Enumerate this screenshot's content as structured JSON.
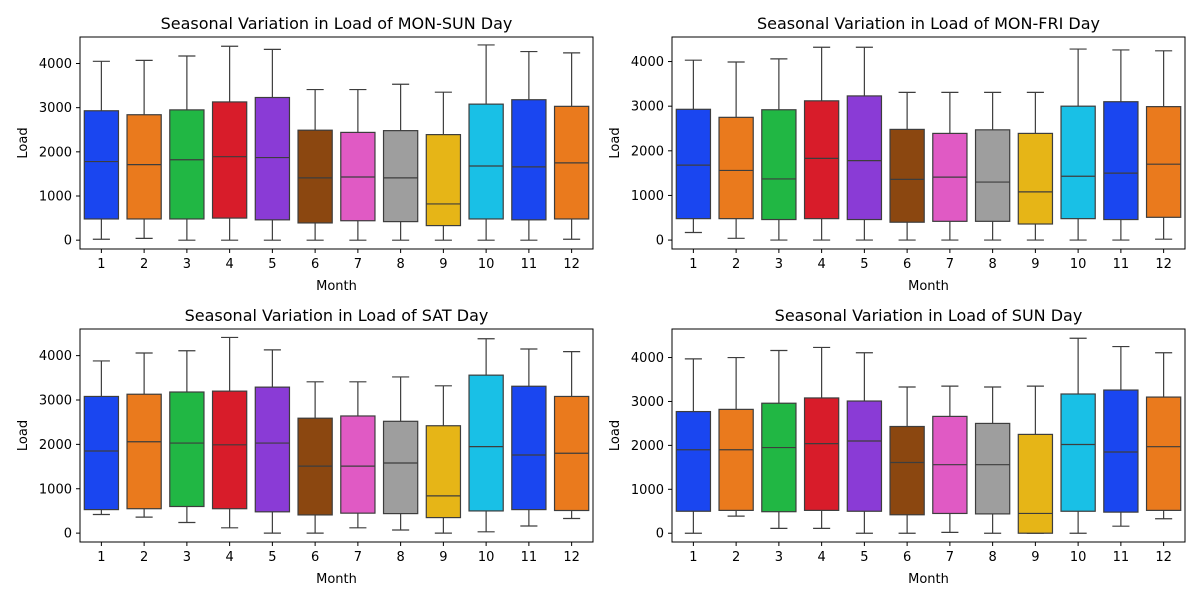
{
  "chart_data": [
    {
      "type": "box",
      "title": "Seasonal Variation in Load of MON-SUN Day",
      "xlabel": "Month",
      "ylabel": "Load",
      "categories": [
        "1",
        "2",
        "3",
        "4",
        "5",
        "6",
        "7",
        "8",
        "9",
        "10",
        "11",
        "12"
      ],
      "ylim": [
        -200,
        4600
      ],
      "yticks": [
        0,
        1000,
        2000,
        3000,
        4000
      ],
      "boxes": [
        {
          "min": 20,
          "q1": 480,
          "median": 1780,
          "q3": 2930,
          "max": 4050
        },
        {
          "min": 40,
          "q1": 480,
          "median": 1710,
          "q3": 2840,
          "max": 4070
        },
        {
          "min": 0,
          "q1": 480,
          "median": 1820,
          "q3": 2950,
          "max": 4170
        },
        {
          "min": 0,
          "q1": 500,
          "median": 1890,
          "q3": 3130,
          "max": 4390
        },
        {
          "min": 0,
          "q1": 460,
          "median": 1870,
          "q3": 3230,
          "max": 4320
        },
        {
          "min": 0,
          "q1": 390,
          "median": 1410,
          "q3": 2490,
          "max": 3410
        },
        {
          "min": 0,
          "q1": 440,
          "median": 1430,
          "q3": 2440,
          "max": 3410
        },
        {
          "min": 0,
          "q1": 420,
          "median": 1410,
          "q3": 2480,
          "max": 3530
        },
        {
          "min": 0,
          "q1": 330,
          "median": 820,
          "q3": 2390,
          "max": 3350
        },
        {
          "min": 0,
          "q1": 480,
          "median": 1680,
          "q3": 3080,
          "max": 4420
        },
        {
          "min": 0,
          "q1": 460,
          "median": 1660,
          "q3": 3180,
          "max": 4270
        },
        {
          "min": 20,
          "q1": 480,
          "median": 1750,
          "q3": 3030,
          "max": 4240
        }
      ]
    },
    {
      "type": "box",
      "title": "Seasonal Variation in Load of MON-FRI Day",
      "xlabel": "Month",
      "ylabel": "Load",
      "categories": [
        "1",
        "2",
        "3",
        "4",
        "5",
        "6",
        "7",
        "8",
        "9",
        "10",
        "11",
        "12"
      ],
      "ylim": [
        -200,
        4550
      ],
      "yticks": [
        0,
        1000,
        2000,
        3000,
        4000
      ],
      "boxes": [
        {
          "min": 170,
          "q1": 480,
          "median": 1680,
          "q3": 2930,
          "max": 4030
        },
        {
          "min": 40,
          "q1": 480,
          "median": 1560,
          "q3": 2750,
          "max": 3990
        },
        {
          "min": 0,
          "q1": 460,
          "median": 1370,
          "q3": 2920,
          "max": 4060
        },
        {
          "min": 0,
          "q1": 480,
          "median": 1830,
          "q3": 3120,
          "max": 4320
        },
        {
          "min": 0,
          "q1": 460,
          "median": 1780,
          "q3": 3230,
          "max": 4320
        },
        {
          "min": 0,
          "q1": 400,
          "median": 1360,
          "q3": 2480,
          "max": 3310
        },
        {
          "min": 0,
          "q1": 420,
          "median": 1410,
          "q3": 2390,
          "max": 3310
        },
        {
          "min": 0,
          "q1": 420,
          "median": 1300,
          "q3": 2470,
          "max": 3310
        },
        {
          "min": 0,
          "q1": 360,
          "median": 1080,
          "q3": 2390,
          "max": 3310
        },
        {
          "min": 0,
          "q1": 480,
          "median": 1430,
          "q3": 3000,
          "max": 4280
        },
        {
          "min": 0,
          "q1": 460,
          "median": 1500,
          "q3": 3100,
          "max": 4260
        },
        {
          "min": 20,
          "q1": 510,
          "median": 1700,
          "q3": 2990,
          "max": 4240
        }
      ]
    },
    {
      "type": "box",
      "title": "Seasonal Variation in Load of SAT Day",
      "xlabel": "Month",
      "ylabel": "Load",
      "categories": [
        "1",
        "2",
        "3",
        "4",
        "5",
        "6",
        "7",
        "8",
        "9",
        "10",
        "11",
        "12"
      ],
      "ylim": [
        -200,
        4600
      ],
      "yticks": [
        0,
        1000,
        2000,
        3000,
        4000
      ],
      "boxes": [
        {
          "min": 420,
          "q1": 530,
          "median": 1850,
          "q3": 3080,
          "max": 3880
        },
        {
          "min": 360,
          "q1": 550,
          "median": 2060,
          "q3": 3130,
          "max": 4060
        },
        {
          "min": 240,
          "q1": 600,
          "median": 2030,
          "q3": 3180,
          "max": 4110
        },
        {
          "min": 120,
          "q1": 550,
          "median": 1990,
          "q3": 3200,
          "max": 4410
        },
        {
          "min": 0,
          "q1": 480,
          "median": 2030,
          "q3": 3290,
          "max": 4130
        },
        {
          "min": 0,
          "q1": 410,
          "median": 1510,
          "q3": 2590,
          "max": 3410
        },
        {
          "min": 120,
          "q1": 450,
          "median": 1510,
          "q3": 2640,
          "max": 3410
        },
        {
          "min": 70,
          "q1": 440,
          "median": 1580,
          "q3": 2520,
          "max": 3520
        },
        {
          "min": 0,
          "q1": 350,
          "median": 840,
          "q3": 2420,
          "max": 3320
        },
        {
          "min": 30,
          "q1": 500,
          "median": 1950,
          "q3": 3560,
          "max": 4380
        },
        {
          "min": 160,
          "q1": 530,
          "median": 1760,
          "q3": 3310,
          "max": 4150
        },
        {
          "min": 330,
          "q1": 510,
          "median": 1800,
          "q3": 3080,
          "max": 4090
        }
      ]
    },
    {
      "type": "box",
      "title": "Seasonal Variation in Load of SUN Day",
      "xlabel": "Month",
      "ylabel": "Load",
      "categories": [
        "1",
        "2",
        "3",
        "4",
        "5",
        "6",
        "7",
        "8",
        "9",
        "10",
        "11",
        "12"
      ],
      "ylim": [
        -200,
        4650
      ],
      "yticks": [
        0,
        1000,
        2000,
        3000,
        4000
      ],
      "boxes": [
        {
          "min": 0,
          "q1": 500,
          "median": 1900,
          "q3": 2770,
          "max": 3970
        },
        {
          "min": 390,
          "q1": 520,
          "median": 1900,
          "q3": 2820,
          "max": 4000
        },
        {
          "min": 110,
          "q1": 490,
          "median": 1950,
          "q3": 2960,
          "max": 4160
        },
        {
          "min": 110,
          "q1": 520,
          "median": 2040,
          "q3": 3080,
          "max": 4230
        },
        {
          "min": 0,
          "q1": 500,
          "median": 2100,
          "q3": 3010,
          "max": 4110
        },
        {
          "min": 0,
          "q1": 420,
          "median": 1610,
          "q3": 2430,
          "max": 3330
        },
        {
          "min": 20,
          "q1": 450,
          "median": 1560,
          "q3": 2660,
          "max": 3350
        },
        {
          "min": 0,
          "q1": 440,
          "median": 1560,
          "q3": 2500,
          "max": 3330
        },
        {
          "min": 0,
          "q1": 0,
          "median": 450,
          "q3": 2250,
          "max": 3350
        },
        {
          "min": 0,
          "q1": 500,
          "median": 2020,
          "q3": 3170,
          "max": 4440
        },
        {
          "min": 160,
          "q1": 480,
          "median": 1850,
          "q3": 3260,
          "max": 4250
        },
        {
          "min": 330,
          "q1": 520,
          "median": 1970,
          "q3": 3100,
          "max": 4110
        }
      ]
    }
  ],
  "colors": [
    "#1a46f0",
    "#ea7a1d",
    "#21b744",
    "#d81c2a",
    "#8a3bd6",
    "#8b4710",
    "#e05ac4",
    "#9e9e9e",
    "#e6b517",
    "#19c0e6",
    "#1a46f0",
    "#ea7a1d"
  ]
}
